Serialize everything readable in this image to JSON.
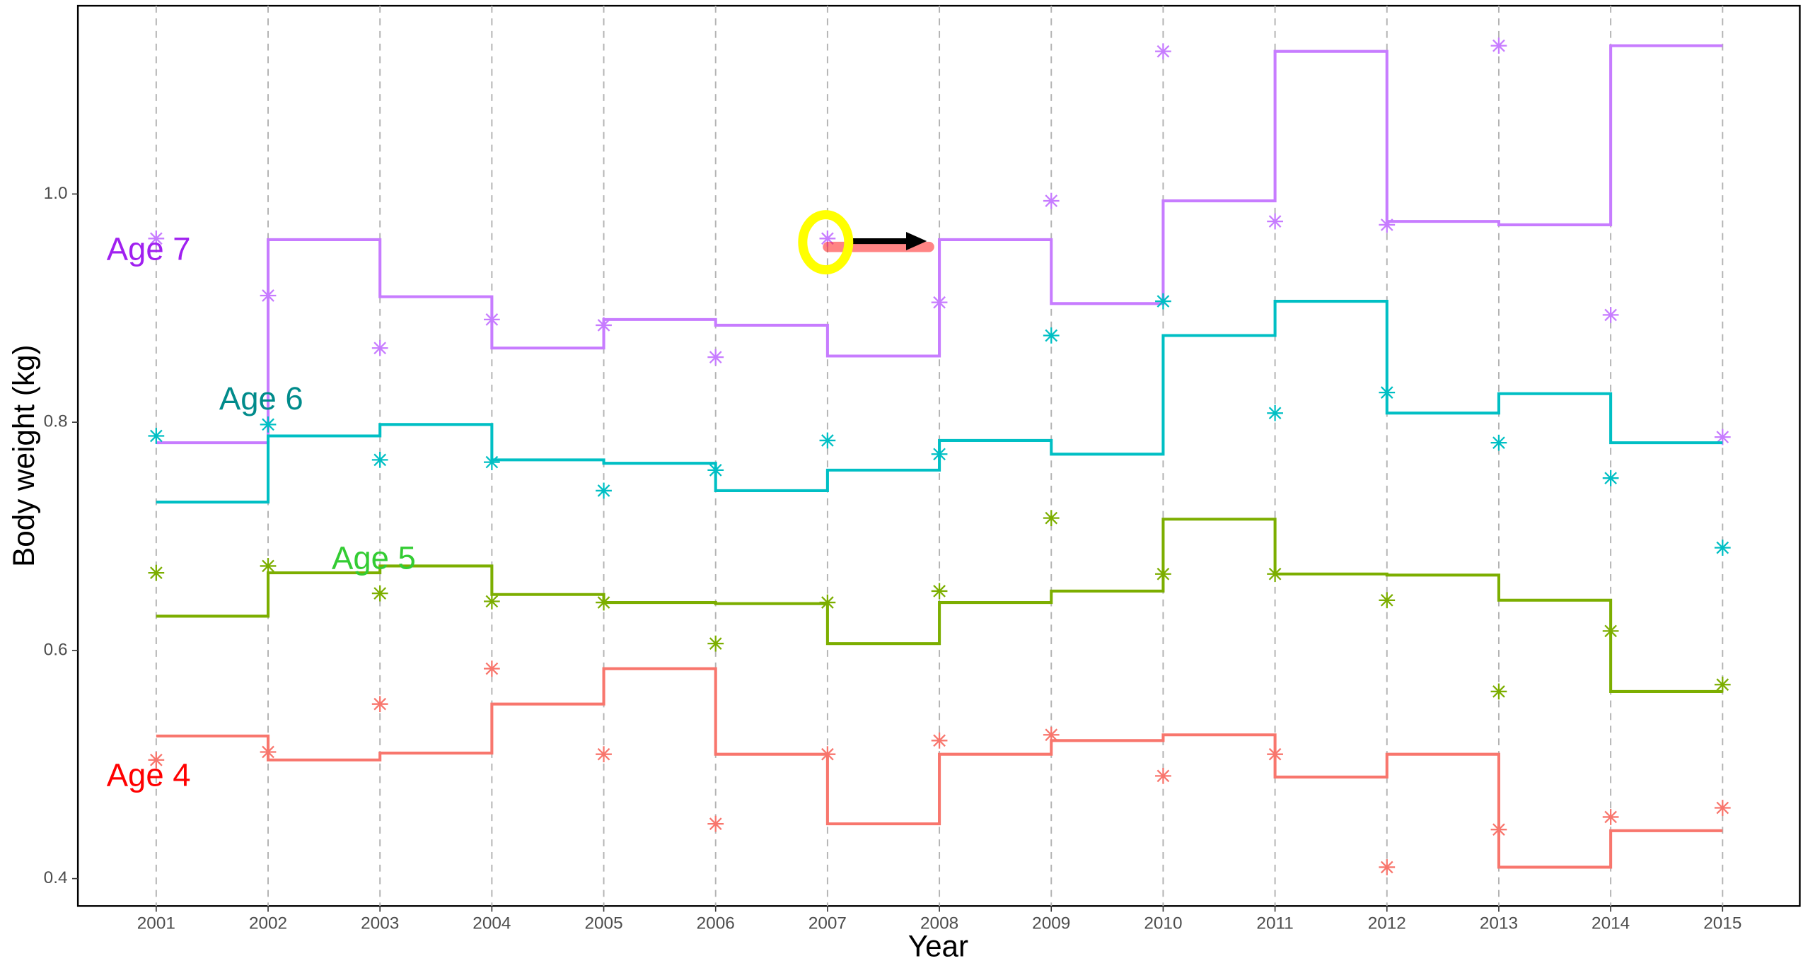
{
  "chart_data": {
    "type": "step-scatter",
    "x_label": "Year",
    "y_label": "Body weight (kg)",
    "x": [
      2001,
      2002,
      2003,
      2004,
      2005,
      2006,
      2007,
      2008,
      2009,
      2010,
      2011,
      2012,
      2013,
      2014,
      2015
    ],
    "xlim": [
      2000.3,
      2015.69
    ],
    "xticks": [
      2001,
      2002,
      2003,
      2004,
      2005,
      2006,
      2007,
      2008,
      2009,
      2010,
      2011,
      2012,
      2013,
      2014,
      2015
    ],
    "ylim": [
      0.376,
      1.165
    ],
    "yticks": [
      0.4,
      0.6,
      0.8,
      {
        "value": 1,
        "label": "1.0"
      }
    ],
    "grid_x": true,
    "series": [
      {
        "name": "Age 7",
        "color": "#C77CFF",
        "label_color": "#A020F0",
        "values": [
          0.961,
          0.911,
          0.865,
          0.89,
          0.885,
          0.857,
          0.961,
          0.905,
          0.994,
          1.125,
          0.976,
          0.973,
          1.13,
          0.894,
          0.787
        ],
        "line_values": [
          0.782,
          0.96,
          0.91,
          0.865,
          0.89,
          0.885,
          0.858,
          0.96,
          0.904,
          0.994,
          1.125,
          0.976,
          0.973,
          1.13,
          1.13
        ]
      },
      {
        "name": "Age 6",
        "color": "#00BFC4",
        "label_color": "#008B8B",
        "values": [
          0.788,
          0.798,
          0.767,
          0.765,
          0.74,
          0.758,
          0.784,
          0.772,
          0.876,
          0.906,
          0.808,
          0.826,
          0.782,
          0.751,
          0.69
        ],
        "line_values": [
          0.73,
          0.788,
          0.798,
          0.767,
          0.764,
          0.74,
          0.758,
          0.784,
          0.772,
          0.876,
          0.906,
          0.808,
          0.825,
          0.782,
          0.782
        ]
      },
      {
        "name": "Age 5",
        "color": "#7CAE00",
        "label_color": "#33CC33",
        "values": [
          0.668,
          0.674,
          0.65,
          0.643,
          0.642,
          0.606,
          0.642,
          0.652,
          0.716,
          0.667,
          0.667,
          0.644,
          0.564,
          0.617,
          0.57
        ],
        "line_values": [
          0.63,
          0.668,
          0.674,
          0.649,
          0.642,
          0.641,
          0.606,
          0.642,
          0.652,
          0.715,
          0.667,
          0.666,
          0.644,
          0.564,
          0.564
        ]
      },
      {
        "name": "Age 4",
        "color": "#F8766D",
        "label_color": "#FF0000",
        "values": [
          0.504,
          0.511,
          0.553,
          0.584,
          0.509,
          0.448,
          0.509,
          0.521,
          0.526,
          0.49,
          0.509,
          0.41,
          0.443,
          0.454,
          0.462
        ],
        "line_values": [
          0.525,
          0.504,
          0.51,
          0.553,
          0.584,
          0.509,
          0.448,
          0.509,
          0.521,
          0.526,
          0.489,
          0.509,
          0.41,
          0.442,
          0.442
        ]
      }
    ]
  }
}
